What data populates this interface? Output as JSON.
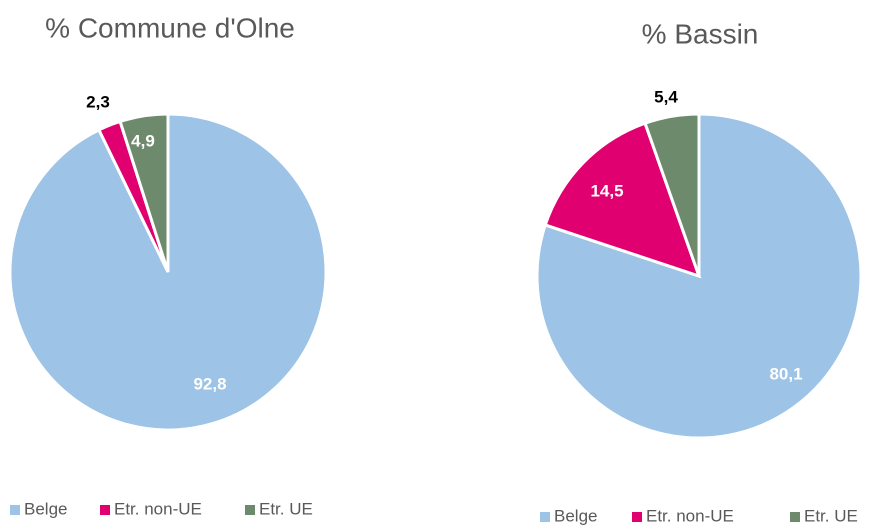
{
  "chart_data": [
    {
      "type": "pie",
      "title": "% Commune d'Olne",
      "categories": [
        "Belge",
        "Etr. non-UE",
        "Etr. UE"
      ],
      "values": [
        92.8,
        2.3,
        4.9
      ],
      "value_labels": [
        "92,8",
        "2,3",
        "4,9"
      ],
      "colors": [
        "#9dc3e6",
        "#e0006f",
        "#6e8a6c"
      ]
    },
    {
      "type": "pie",
      "title": "% Bassin",
      "categories": [
        "Belge",
        "Etr. non-UE",
        "Etr. UE"
      ],
      "values": [
        80.1,
        14.5,
        5.4
      ],
      "value_labels": [
        "80,1",
        "14,5",
        "5,4"
      ],
      "colors": [
        "#9dc3e6",
        "#e0006f",
        "#6e8a6c"
      ]
    }
  ]
}
